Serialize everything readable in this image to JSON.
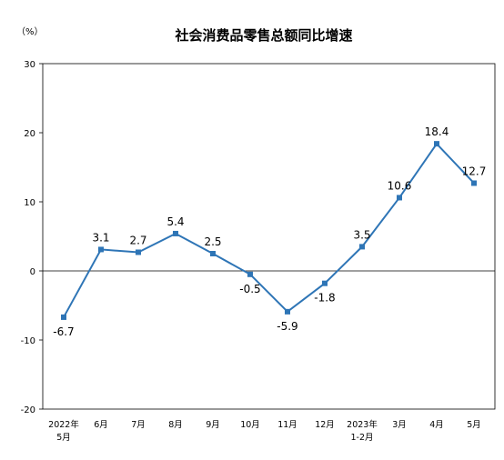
{
  "chart_data": {
    "type": "line",
    "title": "社会消费品零售总额同比增速",
    "unit_label": "（%）",
    "categories": [
      [
        "2022年",
        "5月"
      ],
      [
        "6月"
      ],
      [
        "7月"
      ],
      [
        "8月"
      ],
      [
        "9月"
      ],
      [
        "10月"
      ],
      [
        "11月"
      ],
      [
        "12月"
      ],
      [
        "2023年",
        "1-2月"
      ],
      [
        "3月"
      ],
      [
        "4月"
      ],
      [
        "5月"
      ]
    ],
    "series": [
      {
        "values": [
          -6.7,
          3.1,
          2.7,
          5.4,
          2.5,
          -0.5,
          -5.9,
          -1.8,
          3.5,
          10.6,
          18.4,
          12.7
        ]
      }
    ],
    "data_labels": [
      "-6.7",
      "3.1",
      "2.7",
      "5.4",
      "2.5",
      "-0.5",
      "-5.9",
      "-1.8",
      "3.5",
      "10.6",
      "18.4",
      "12.7"
    ],
    "yticks": [
      30,
      20,
      10,
      0,
      -10,
      -20
    ],
    "ylim": [
      -20,
      30
    ],
    "grid": false,
    "line_color": "#2e75b6"
  }
}
